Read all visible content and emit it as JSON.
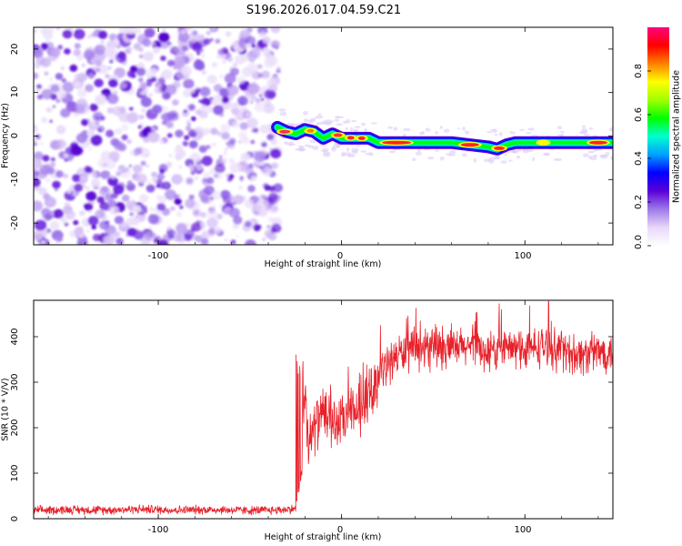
{
  "title": "S196.2026.017.04.59.C21",
  "chart_data": [
    {
      "type": "heatmap",
      "xlabel": "Height of straight line (km)",
      "ylabel": "Frequency (Hz)",
      "xlim": [
        -168,
        148
      ],
      "ylim": [
        -25,
        25
      ],
      "xticks": [
        -100,
        0,
        100
      ],
      "xtick_labels": [
        "-100",
        "0",
        "100"
      ],
      "yticks": [
        20,
        10,
        0,
        -10,
        -20
      ],
      "ytick_labels": [
        "20",
        "10",
        "0",
        "-10",
        "-20"
      ],
      "noise_region_x": [
        -168,
        -34
      ],
      "signal_track": {
        "x": [
          -35,
          -30,
          -25,
          -20,
          -15,
          -10,
          -5,
          0,
          5,
          10,
          15,
          20,
          30,
          40,
          50,
          60,
          70,
          80,
          85,
          90,
          95,
          100,
          110,
          120,
          130,
          140,
          148
        ],
        "y": [
          2.0,
          1.0,
          0.5,
          1.5,
          1.0,
          -0.5,
          0.5,
          -0.5,
          -0.5,
          -0.5,
          -0.5,
          -1.5,
          -1.5,
          -1.5,
          -1.5,
          -1.5,
          -2.0,
          -2.5,
          -3.0,
          -2.0,
          -1.5,
          -1.5,
          -1.5,
          -1.5,
          -1.5,
          -1.5,
          -1.5
        ]
      },
      "colorbar": {
        "label": "Normalized spectral amplitude",
        "range": [
          0,
          1
        ],
        "ticks": [
          0.8,
          0.6,
          0.4,
          0.2,
          0.0
        ],
        "tick_labels": [
          "0.8",
          "0.6",
          "0.4",
          "0.2",
          "0.0"
        ],
        "colors": [
          "#ffffff",
          "#e8d8f8",
          "#9d7ae8",
          "#5a00d8",
          "#0000ff",
          "#00a0ff",
          "#00ffd0",
          "#00ff00",
          "#a0ff00",
          "#ffff00",
          "#ff8000",
          "#ff0000",
          "#ff0080"
        ]
      }
    },
    {
      "type": "line",
      "xlabel": "Height of straight line (km)",
      "ylabel": "SNR (10 * V/V)",
      "xlim": [
        -168,
        148
      ],
      "ylim": [
        0,
        480
      ],
      "xticks": [
        -100,
        0,
        100
      ],
      "xtick_labels": [
        "-100",
        "0",
        "100"
      ],
      "yticks": [
        0,
        100,
        200,
        300,
        400
      ],
      "ytick_labels": [
        "0",
        "100",
        "200",
        "300",
        "400"
      ],
      "series": [
        {
          "name": "SNR",
          "color": "#e8212a",
          "x": [
            -168,
            -150,
            -130,
            -110,
            -90,
            -70,
            -50,
            -35,
            -25,
            -22,
            -20,
            -18,
            -15,
            -10,
            -5,
            0,
            5,
            10,
            15,
            20,
            25,
            30,
            40,
            50,
            60,
            70,
            80,
            90,
            100,
            110,
            120,
            130,
            140,
            148
          ],
          "y": [
            18,
            20,
            19,
            21,
            19,
            20,
            18,
            19,
            22,
            100,
            300,
            160,
            200,
            230,
            210,
            210,
            230,
            240,
            270,
            310,
            340,
            360,
            370,
            375,
            370,
            380,
            365,
            375,
            370,
            380,
            370,
            360,
            365,
            370
          ]
        }
      ]
    }
  ]
}
